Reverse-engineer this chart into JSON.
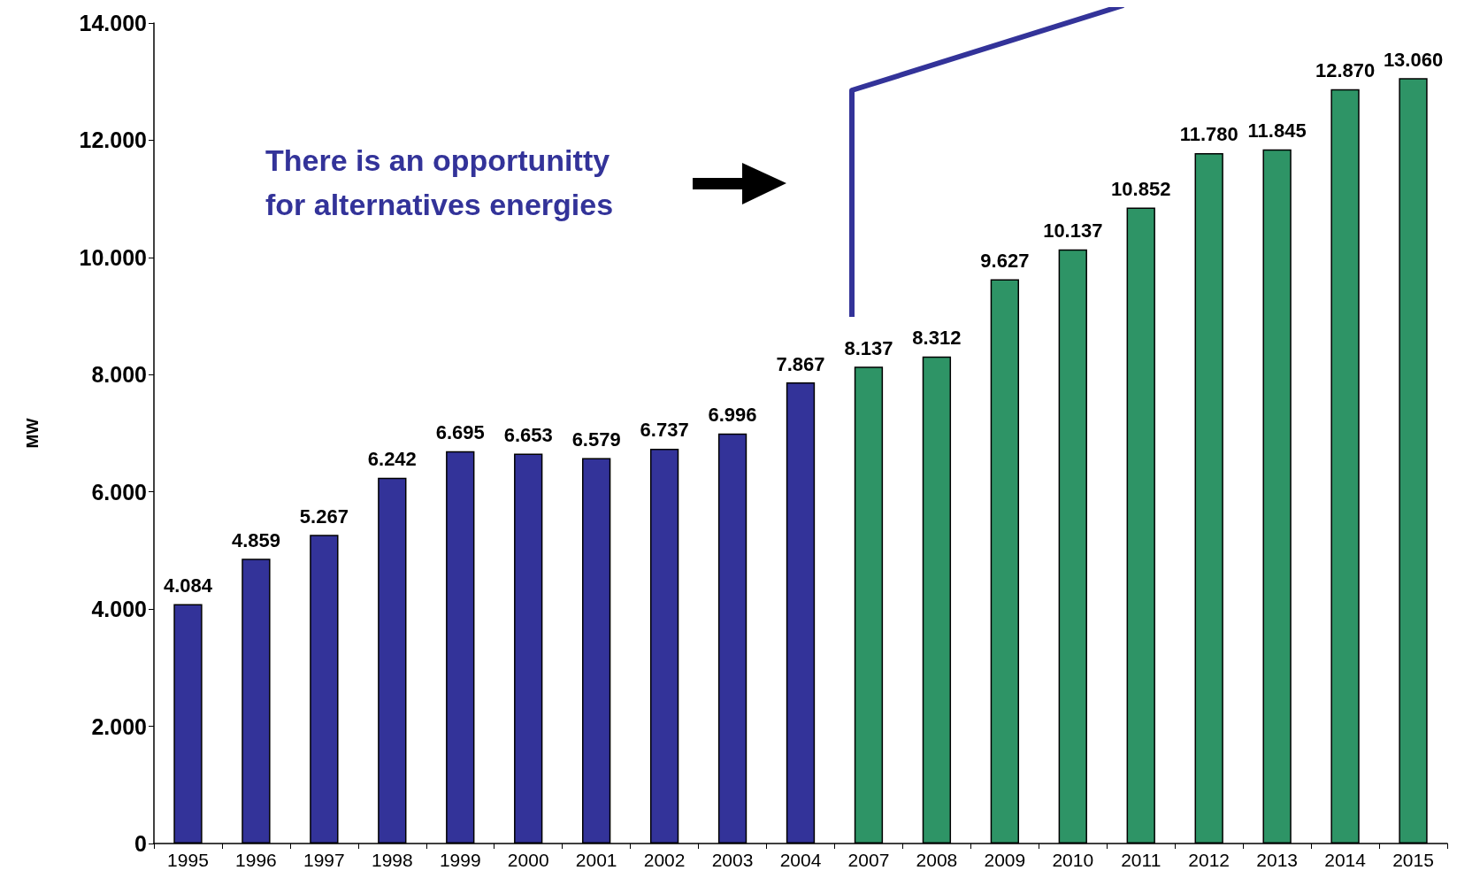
{
  "chart_data": {
    "type": "bar",
    "ylabel": "MW",
    "categories": [
      "1995",
      "1996",
      "1997",
      "1998",
      "1999",
      "2000",
      "2001",
      "2002",
      "2003",
      "2004",
      "2007",
      "2008",
      "2009",
      "2010",
      "2011",
      "2012",
      "2013",
      "2014",
      "2015"
    ],
    "values": [
      4084,
      4859,
      5267,
      6242,
      6695,
      6653,
      6579,
      6737,
      6996,
      7867,
      8137,
      8312,
      9627,
      10137,
      10852,
      11780,
      11845,
      12870,
      13060
    ],
    "value_labels": [
      "4.084",
      "4.859",
      "5.267",
      "6.242",
      "6.695",
      "6.653",
      "6.579",
      "6.737",
      "6.996",
      "7.867",
      "8.137",
      "8.312",
      "9.627",
      "10.137",
      "10.852",
      "11.780",
      "11.845",
      "12.870",
      "13.060"
    ],
    "colors": [
      "#333399",
      "#333399",
      "#333399",
      "#333399",
      "#333399",
      "#333399",
      "#333399",
      "#333399",
      "#333399",
      "#333399",
      "#2e9466",
      "#2e9466",
      "#2e9466",
      "#2e9466",
      "#2e9466",
      "#2e9466",
      "#2e9466",
      "#2e9466",
      "#2e9466"
    ],
    "ylim": [
      0,
      14000
    ],
    "yticks": [
      {
        "value": 0,
        "label": "0"
      },
      {
        "value": 2000,
        "label": "2.000"
      },
      {
        "value": 4000,
        "label": "4.000"
      },
      {
        "value": 6000,
        "label": "6.000"
      },
      {
        "value": 8000,
        "label": "8.000"
      },
      {
        "value": 10000,
        "label": "10.000"
      },
      {
        "value": 12000,
        "label": "12.000"
      },
      {
        "value": 14000,
        "label": "14.000"
      }
    ],
    "annotations": [
      "There is an opportunitty for alternatives energies"
    ],
    "grid": false
  }
}
